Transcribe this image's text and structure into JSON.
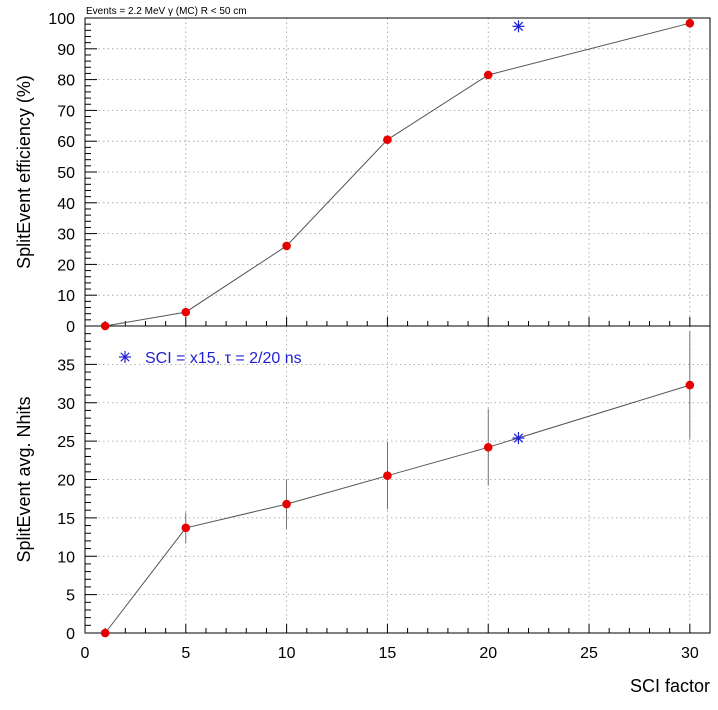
{
  "chart_data": [
    {
      "type": "line",
      "header": "Events = 2.2 MeV γ (MC) R < 50 cm",
      "ylabel": "SplitEvent efficiency (%)",
      "xlim": [
        0,
        31
      ],
      "ylim": [
        0,
        100
      ],
      "y_ticks": [
        0,
        10,
        20,
        30,
        40,
        50,
        60,
        70,
        80,
        90,
        100
      ],
      "grid": true,
      "series": [
        {
          "color": "#e60000",
          "marker": "circle",
          "line": true,
          "points": [
            {
              "x": 1,
              "y": 0
            },
            {
              "x": 5,
              "y": 4.5
            },
            {
              "x": 10,
              "y": 26
            },
            {
              "x": 15,
              "y": 60.5
            },
            {
              "x": 20,
              "y": 81.5
            },
            {
              "x": 30,
              "y": 98.3
            }
          ]
        },
        {
          "color": "#1f1fd6",
          "marker": "star",
          "line": false,
          "points": [
            {
              "x": 21.5,
              "y": 97.3
            }
          ]
        }
      ]
    },
    {
      "type": "line",
      "ylabel": "SplitEvent avg. Nhits",
      "xlabel": "SCI factor",
      "xlim": [
        0,
        31
      ],
      "ylim": [
        0,
        40
      ],
      "y_ticks": [
        0,
        5,
        10,
        15,
        20,
        25,
        30,
        35
      ],
      "x_ticks": [
        0,
        5,
        10,
        15,
        20,
        25,
        30
      ],
      "grid": true,
      "legend": {
        "label": "SCI = x15, τ = 2/20 ns",
        "placement": "top-left",
        "color": "#1f1fd6",
        "marker": "star"
      },
      "series": [
        {
          "color": "#e60000",
          "marker": "circle",
          "line": true,
          "points": [
            {
              "x": 1,
              "y": 0,
              "err": 0
            },
            {
              "x": 5,
              "y": 13.7,
              "err": 2.0
            },
            {
              "x": 10,
              "y": 16.8,
              "err": 3.2
            },
            {
              "x": 15,
              "y": 20.5,
              "err": 4.4
            },
            {
              "x": 20,
              "y": 24.2,
              "err": 5.0
            },
            {
              "x": 30,
              "y": 32.3,
              "err": 7.0
            }
          ]
        },
        {
          "color": "#1f1fd6",
          "marker": "star",
          "line": false,
          "points": [
            {
              "x": 21.5,
              "y": 25.4,
              "err": 0
            }
          ]
        }
      ]
    }
  ]
}
